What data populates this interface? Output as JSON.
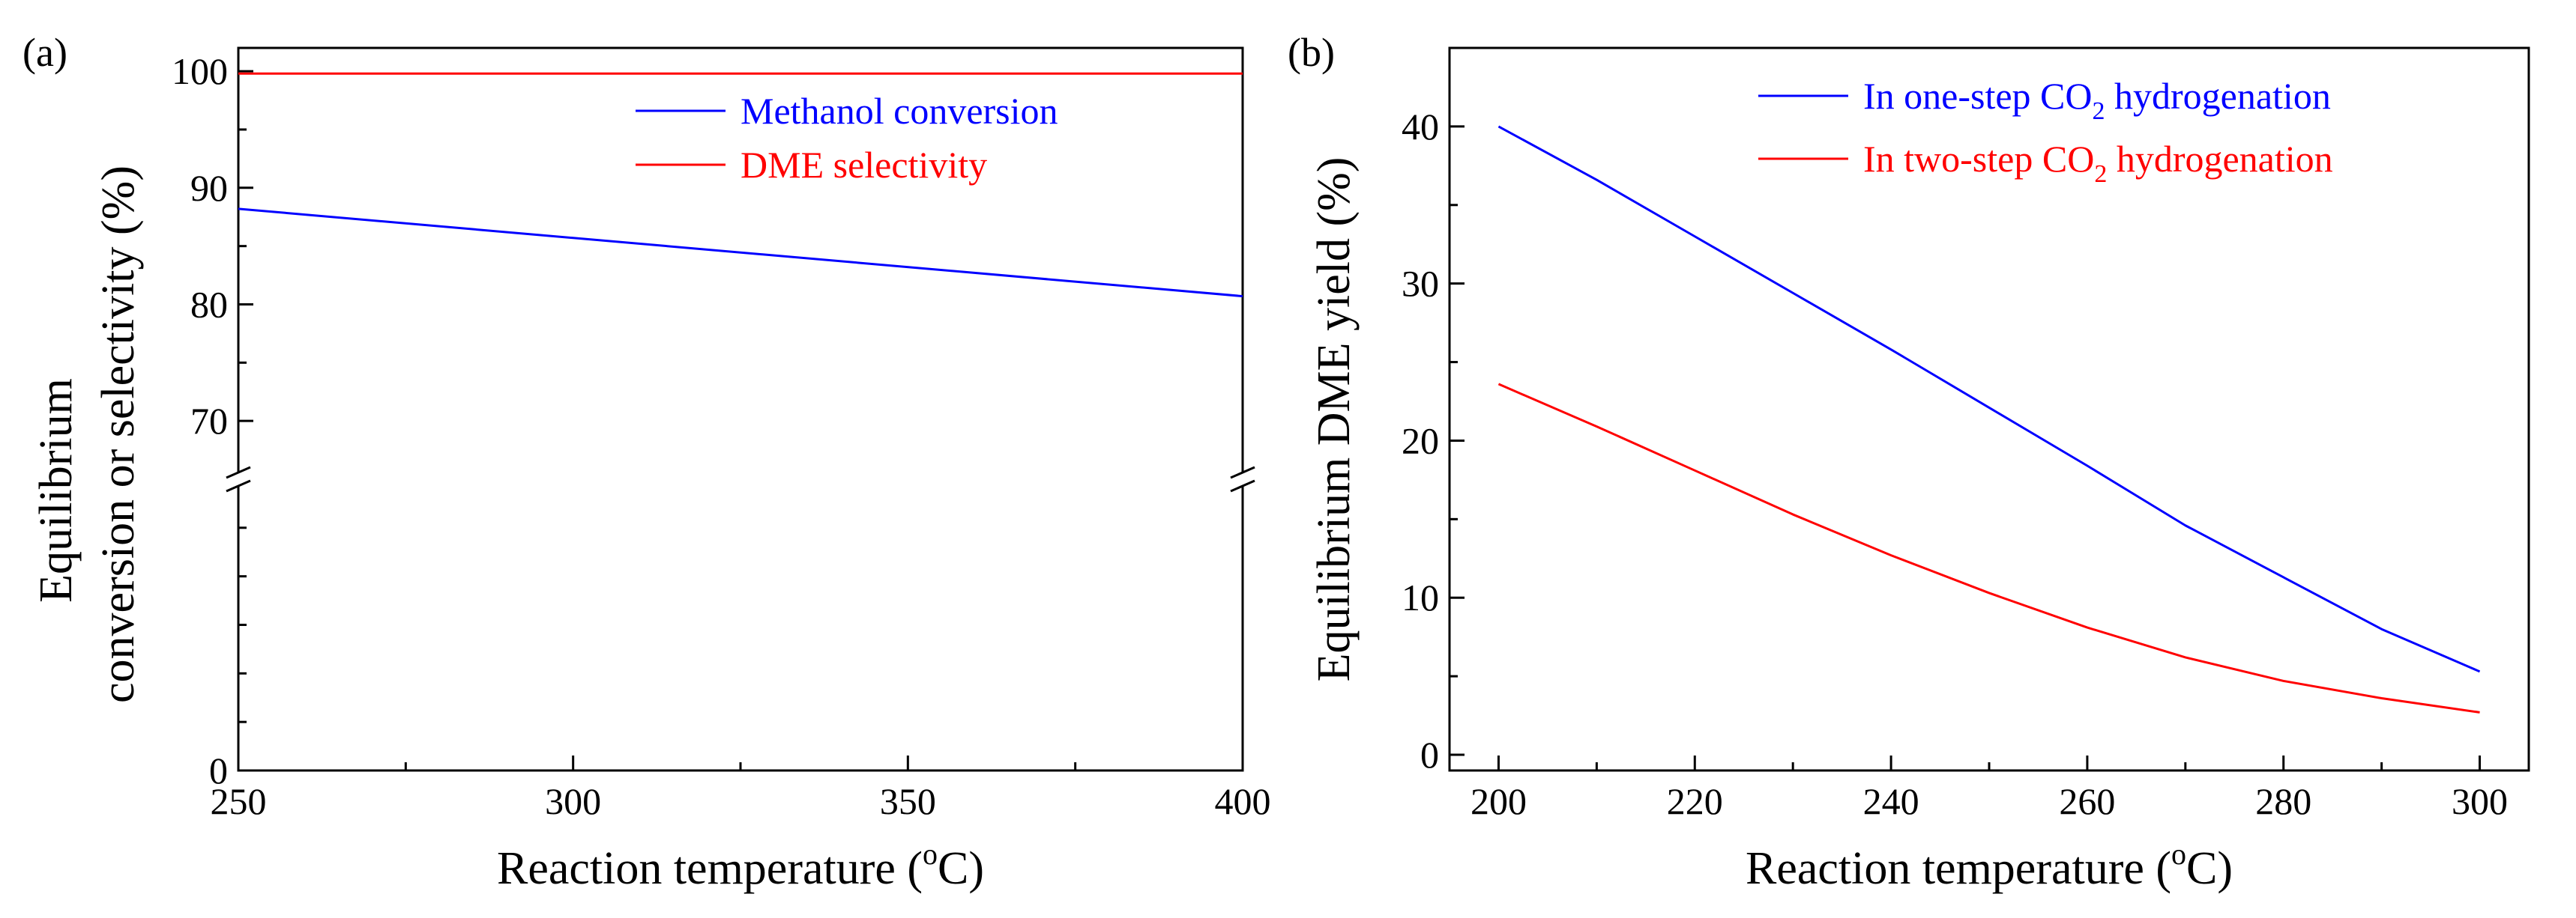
{
  "chart_data": [
    {
      "panel_label": "(a)",
      "type": "line",
      "xlabel": {
        "main": "Reaction temperature (",
        "sup": "o",
        "tail": "C)"
      },
      "ylabel": {
        "line1": "Equilibrium",
        "line2": "conversion or selectivity (%)"
      },
      "xlim": [
        250,
        400
      ],
      "y_axis_break": true,
      "ylim_upper": [
        65,
        102
      ],
      "ylim_lower": [
        0,
        30
      ],
      "x_ticks": [
        250,
        300,
        350,
        400
      ],
      "x_tick_labels": [
        "250",
        "300",
        "350",
        "400"
      ],
      "y_ticks": [
        0,
        70,
        80,
        90,
        100
      ],
      "y_tick_labels": [
        "0",
        "70",
        "80",
        "90",
        "100"
      ],
      "legend_placement": "top-right",
      "series": [
        {
          "name": "Methanol conversion",
          "color": "#0000ff",
          "x": [
            250,
            400
          ],
          "y": [
            88.2,
            80.7
          ]
        },
        {
          "name": "DME selectivity",
          "color": "#ff0000",
          "x": [
            250,
            400
          ],
          "y": [
            99.8,
            99.8
          ]
        }
      ]
    },
    {
      "panel_label": "(b)",
      "type": "line",
      "xlabel": {
        "main": "Reaction temperature (",
        "sup": "o",
        "tail": "C)"
      },
      "ylabel": {
        "line1": "Equilibrium DME yield (%)"
      },
      "xlim": [
        195,
        305
      ],
      "ylim": [
        -1,
        45
      ],
      "x_ticks": [
        200,
        220,
        240,
        260,
        280,
        300
      ],
      "x_tick_labels": [
        "200",
        "220",
        "240",
        "260",
        "280",
        "300"
      ],
      "y_ticks": [
        0,
        10,
        20,
        30,
        40
      ],
      "y_tick_labels": [
        "0",
        "10",
        "20",
        "30",
        "40"
      ],
      "legend_placement": "top-right",
      "series": [
        {
          "name_pre": "In one-step CO",
          "name_sub": "2",
          "name_post": " hydrogenation",
          "color": "#0000ff",
          "x": [
            200,
            210,
            220,
            230,
            240,
            250,
            260,
            270,
            280,
            290,
            300
          ],
          "y": [
            40.0,
            36.6,
            33.0,
            29.4,
            25.8,
            22.1,
            18.4,
            14.6,
            11.3,
            8.0,
            5.3
          ]
        },
        {
          "name_pre": "In two-step CO",
          "name_sub": "2",
          "name_post": " hydrogenation",
          "color": "#ff0000",
          "x": [
            200,
            210,
            220,
            230,
            240,
            250,
            260,
            270,
            280,
            290,
            300
          ],
          "y": [
            23.6,
            20.9,
            18.1,
            15.3,
            12.7,
            10.3,
            8.1,
            6.2,
            4.7,
            3.6,
            2.7
          ]
        }
      ]
    }
  ]
}
